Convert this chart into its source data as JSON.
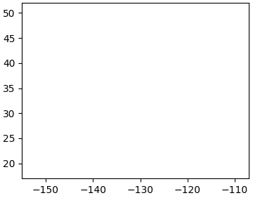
{
  "lon_min": -155,
  "lon_max": -107,
  "lat_min": 17,
  "lat_max": 52,
  "xticks": [
    -150,
    -140,
    -130,
    -120,
    -110
  ],
  "yticks": [
    20,
    30,
    40,
    50
  ],
  "xlabel_labels": [
    "150°W",
    "140°W",
    "130°W",
    "120°W",
    "110°W"
  ],
  "ylabel_labels": [
    "20°N",
    "30°N",
    "40°N",
    "50°N"
  ],
  "land_color": "#c8c8c8",
  "ocean_color": "#ffffff",
  "marker_color_red": "#ff4444",
  "marker_color_black": "#000000",
  "figsize": [
    3.6,
    2.82
  ],
  "dpi": 100
}
